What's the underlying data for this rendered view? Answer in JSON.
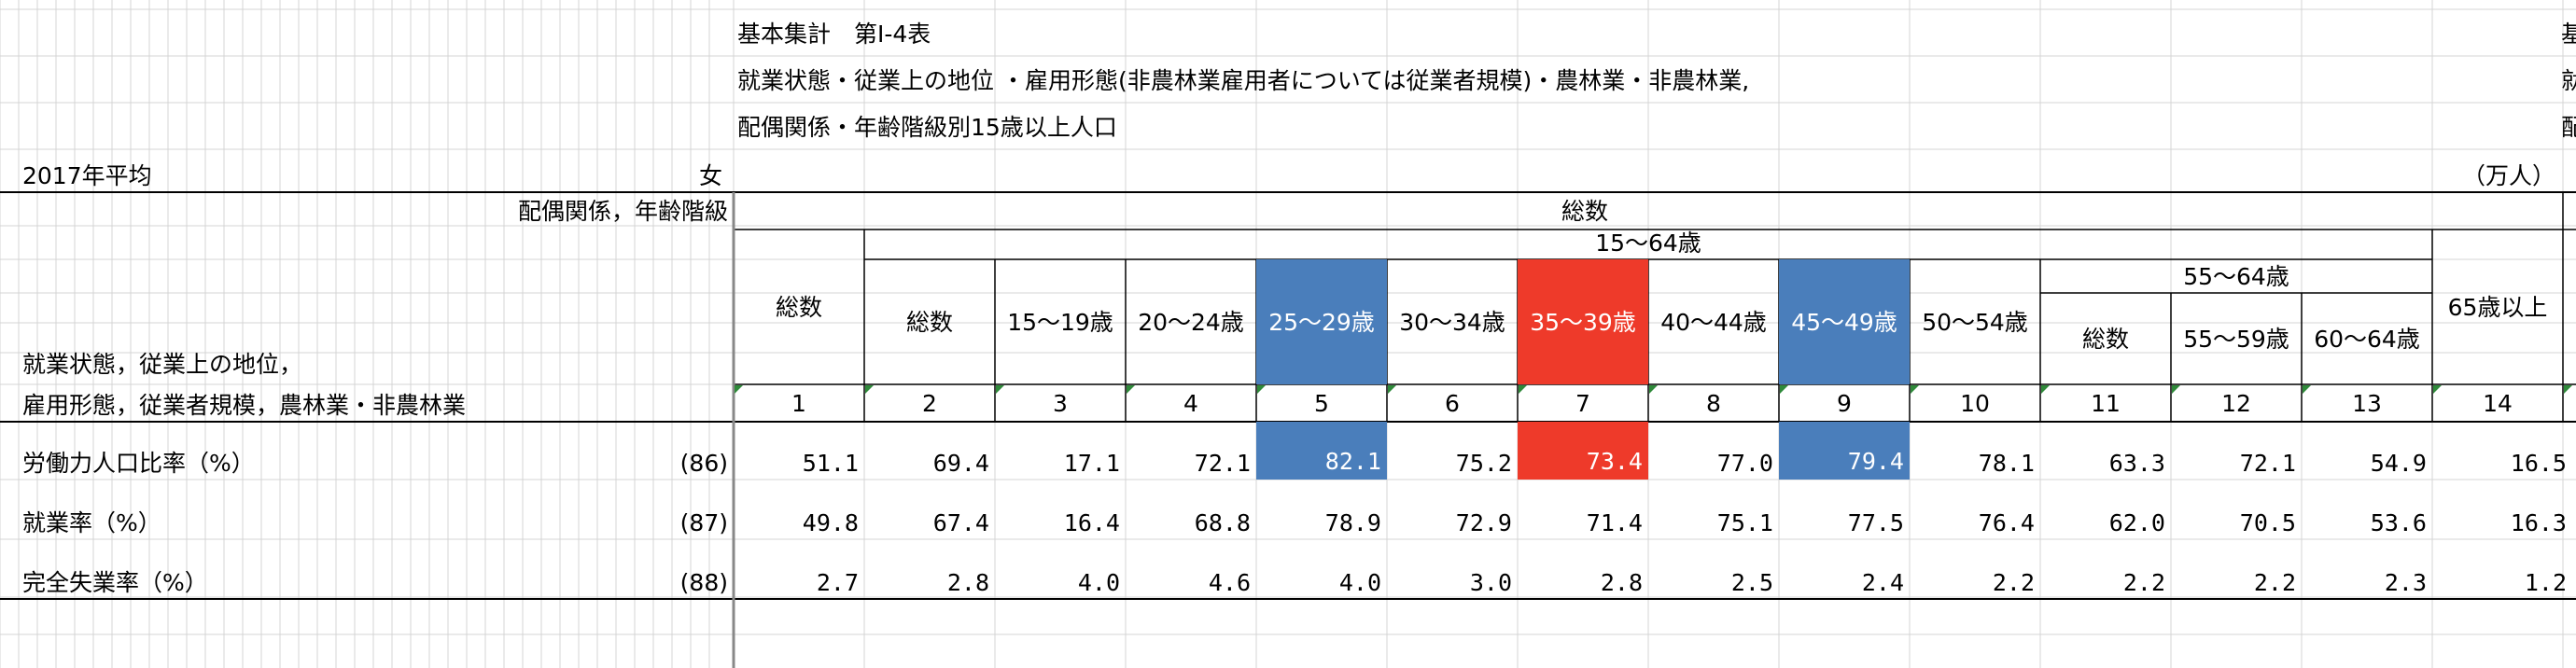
{
  "title": {
    "line1": "基本集計　第Ⅰ-4表",
    "line2": "就業状態・従業上の地位 ・雇用形態(非農林業雇用者については従業者規模)・農林業・非農林業,",
    "line3": "配偶関係・年齢階級別15歳以上人口",
    "cut_right_1": "基",
    "cut_right_2": "就",
    "cut_right_3": "配"
  },
  "meta": {
    "year": "2017年平均",
    "sex": "女",
    "unit": "（万人）"
  },
  "header": {
    "corner_top": "配偶関係，年齢階級",
    "corner_bottom_1": "就業状態，従業上の地位，",
    "corner_bottom_2": "雇用形態，従業者規模，農林業・非農林業",
    "total_group": "総数",
    "total": "総数",
    "group_15_64": "15～64歳",
    "group_55_64": "55～64歳",
    "columns": [
      "総数",
      "総数",
      "15～19歳",
      "20～24歳",
      "25～29歳",
      "30～34歳",
      "35～39歳",
      "40～44歳",
      "45～49歳",
      "50～54歳",
      "総数",
      "55～59歳",
      "60～64歳",
      "65歳以上"
    ],
    "numbers": [
      "1",
      "2",
      "3",
      "4",
      "5",
      "6",
      "7",
      "8",
      "9",
      "10",
      "11",
      "12",
      "13",
      "14"
    ]
  },
  "rows": [
    {
      "label": "労働力人口比率（%）",
      "code": "(86)",
      "values": [
        "51.1",
        "69.4",
        "17.1",
        "72.1",
        "82.1",
        "75.2",
        "73.4",
        "77.0",
        "79.4",
        "78.1",
        "63.3",
        "72.1",
        "54.9",
        "16.5"
      ]
    },
    {
      "label": "就業率（%）",
      "code": "(87)",
      "values": [
        "49.8",
        "67.4",
        "16.4",
        "68.8",
        "78.9",
        "72.9",
        "71.4",
        "75.1",
        "77.5",
        "76.4",
        "62.0",
        "70.5",
        "53.6",
        "16.3"
      ]
    },
    {
      "label": "完全失業率（%）",
      "code": "(88)",
      "values": [
        "2.7",
        "2.8",
        "4.0",
        "4.6",
        "4.0",
        "3.0",
        "2.8",
        "2.5",
        "2.4",
        "2.2",
        "2.2",
        "2.2",
        "2.3",
        "1.2"
      ]
    }
  ],
  "colors": {
    "highlight_blue": "#4a7ebb",
    "highlight_red": "#ee3a2a",
    "gridline": "#d4d4d4"
  }
}
